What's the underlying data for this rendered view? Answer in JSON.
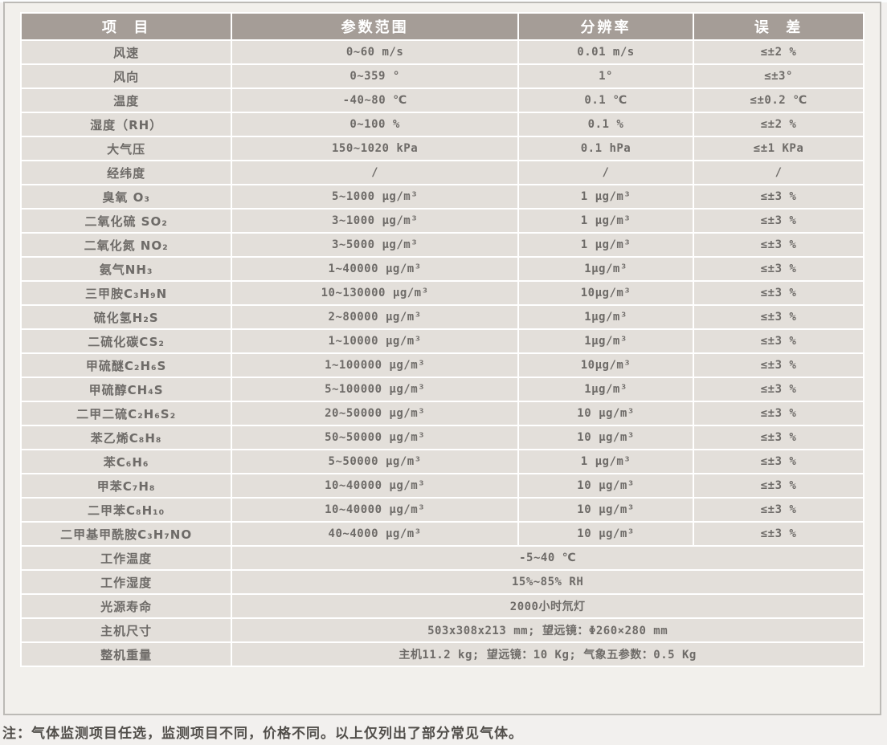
{
  "table": {
    "headers": [
      {
        "label": "项  目"
      },
      {
        "label": "参数范围"
      },
      {
        "label": "分辨率"
      },
      {
        "label": "误  差"
      }
    ],
    "rows": [
      {
        "item": "风速",
        "range": "0~60 m/s",
        "resolution": "0.01 m/s",
        "error": "≤±2 %"
      },
      {
        "item": "风向",
        "range": "0~359 °",
        "resolution": "1°",
        "error": "≤±3°"
      },
      {
        "item": "温度",
        "range": "-40~80 ℃",
        "resolution": "0.1 ℃",
        "error": "≤±0.2 ℃"
      },
      {
        "item": "湿度（RH）",
        "range": "0~100 %",
        "resolution": "0.1 %",
        "error": "≤±2 %"
      },
      {
        "item": "大气压",
        "range": "150~1020 kPa",
        "resolution": "0.1 hPa",
        "error": "≤±1 KPa"
      },
      {
        "item": "经纬度",
        "range": "/",
        "resolution": "/",
        "error": "/"
      },
      {
        "item": "臭氧 O₃",
        "range": "5~1000 μg/m³",
        "resolution": "1 μg/m³",
        "error": "≤±3 %"
      },
      {
        "item": "二氧化硫 SO₂",
        "range": "3~1000 μg/m³",
        "resolution": "1 μg/m³",
        "error": "≤±3 %"
      },
      {
        "item": "二氧化氮 NO₂",
        "range": "3~5000 μg/m³",
        "resolution": "1 μg/m³",
        "error": "≤±3 %"
      },
      {
        "item": "氨气NH₃",
        "range": "1~40000 μg/m³",
        "resolution": "1μg/m³",
        "error": "≤±3 %"
      },
      {
        "item": "三甲胺C₃H₉N",
        "range": "10~130000 μg/m³",
        "resolution": "10μg/m³",
        "error": "≤±3 %"
      },
      {
        "item": "硫化氢H₂S",
        "range": "2~80000 μg/m³",
        "resolution": "1μg/m³",
        "error": "≤±3 %"
      },
      {
        "item": "二硫化碳CS₂",
        "range": "1~10000 μg/m³",
        "resolution": "1μg/m³",
        "error": "≤±3 %"
      },
      {
        "item": "甲硫醚C₂H₆S",
        "range": "1~100000 μg/m³",
        "resolution": "10μg/m³",
        "error": "≤±3 %"
      },
      {
        "item": "甲硫醇CH₄S",
        "range": "5~100000 μg/m³",
        "resolution": "1μg/m³",
        "error": "≤±3 %"
      },
      {
        "item": "二甲二硫C₂H₆S₂",
        "range": "20~50000 μg/m³",
        "resolution": "10 μg/m³",
        "error": "≤±3 %"
      },
      {
        "item": "苯乙烯C₈H₈",
        "range": "50~50000 μg/m³",
        "resolution": "10 μg/m³",
        "error": "≤±3 %"
      },
      {
        "item": "苯C₆H₆",
        "range": "5~50000 μg/m³",
        "resolution": "1 μg/m³",
        "error": "≤±3 %"
      },
      {
        "item": "甲苯C₇H₈",
        "range": "10~40000 μg/m³",
        "resolution": "10 μg/m³",
        "error": "≤±3 %"
      },
      {
        "item": "二甲苯C₈H₁₀",
        "range": "10~40000 μg/m³",
        "resolution": "10 μg/m³",
        "error": "≤±3 %"
      },
      {
        "item": "二甲基甲酰胺C₃H₇NO",
        "range": "40~4000 μg/m³",
        "resolution": "10 μg/m³",
        "error": "≤±3 %"
      },
      {
        "item": "工作温度",
        "span": "-5~40 ℃"
      },
      {
        "item": "工作湿度",
        "span": "15%~85% RH"
      },
      {
        "item": "光源寿命",
        "span": "2000小时氘灯"
      },
      {
        "item": "主机尺寸",
        "span": "503x308x213 mm; 望远镜：Φ260×280 mm"
      },
      {
        "item": "整机重量",
        "span": "主机11.2 kg; 望远镜：10 Kg; 气象五参数：0.5 Kg"
      }
    ]
  },
  "note": "注：气体监测项目任选，监测项目不同，价格不同。以上仅列出了部分常见气体。",
  "colors": {
    "header_bg": "#a59d97",
    "header_text": "#ffffff",
    "row_bg": "#e3dfda",
    "cell_text": "#6e6b68",
    "frame_bg": "#f2f0ec",
    "frame_border": "#bcbab6",
    "grid_gap": "#ffffff",
    "note_text": "#514e4a"
  }
}
